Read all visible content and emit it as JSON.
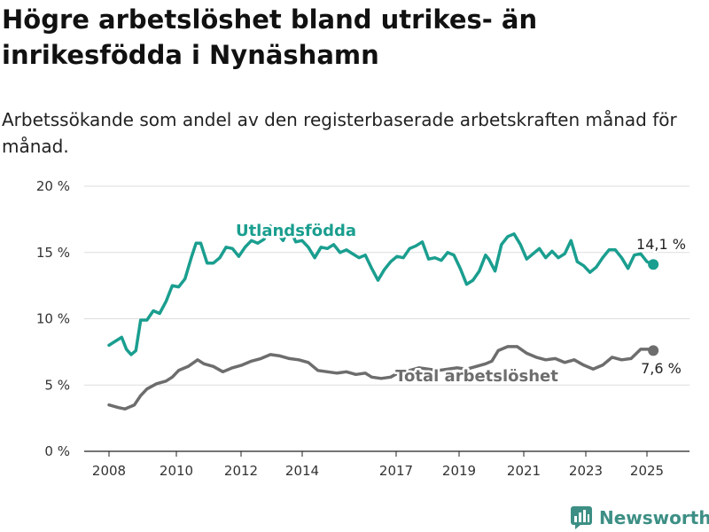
{
  "title": "Högre arbetslöshet bland utrikes- än inrikesfödda i Nynäshamn",
  "subtitle": "Arbetssökande som andel av den registerbaserade arbetskraften månad för månad.",
  "brand": {
    "name": "Newsworthy",
    "color": "#3d8f85"
  },
  "chart_data": {
    "type": "line",
    "title": "Högre arbetslöshet bland utrikes- än inrikesfödda i Nynäshamn",
    "subtitle": "Arbetssökande som andel av den registerbaserade arbetskraften månad för månad.",
    "xlabel": "",
    "ylabel": "",
    "x_ticks": [
      "2008",
      "2010",
      "2012",
      "2014",
      "2017",
      "2019",
      "2021",
      "2023",
      "2025"
    ],
    "y_ticks": [
      "0 %",
      "5 %",
      "10 %",
      "15 %",
      "20 %"
    ],
    "ylim": [
      0,
      20
    ],
    "xlim": [
      2007.7,
      2026.3
    ],
    "grid": "horizontal",
    "legend": "inline labels",
    "series": [
      {
        "name": "Utlandsfödda",
        "color": "#1a9e8f",
        "end_label": "14,1 %",
        "points": [
          [
            2008.0,
            8.0
          ],
          [
            2008.2,
            8.3
          ],
          [
            2008.4,
            8.6
          ],
          [
            2008.55,
            7.7
          ],
          [
            2008.7,
            7.3
          ],
          [
            2008.85,
            7.6
          ],
          [
            2009.0,
            9.9
          ],
          [
            2009.2,
            9.9
          ],
          [
            2009.4,
            10.6
          ],
          [
            2009.6,
            10.4
          ],
          [
            2009.8,
            11.3
          ],
          [
            2010.0,
            12.5
          ],
          [
            2010.2,
            12.4
          ],
          [
            2010.4,
            13.0
          ],
          [
            2010.6,
            14.6
          ],
          [
            2010.75,
            15.7
          ],
          [
            2010.9,
            15.7
          ],
          [
            2011.1,
            14.2
          ],
          [
            2011.3,
            14.2
          ],
          [
            2011.5,
            14.6
          ],
          [
            2011.7,
            15.4
          ],
          [
            2011.9,
            15.3
          ],
          [
            2012.1,
            14.7
          ],
          [
            2012.3,
            15.4
          ],
          [
            2012.5,
            15.9
          ],
          [
            2012.7,
            15.7
          ],
          [
            2012.9,
            16.0
          ],
          [
            2013.1,
            17.0
          ],
          [
            2013.3,
            16.5
          ],
          [
            2013.5,
            15.9
          ],
          [
            2013.7,
            16.9
          ],
          [
            2013.9,
            15.8
          ],
          [
            2014.1,
            15.9
          ],
          [
            2014.3,
            15.4
          ],
          [
            2014.5,
            14.6
          ],
          [
            2014.7,
            15.4
          ],
          [
            2014.9,
            15.3
          ],
          [
            2015.1,
            15.6
          ],
          [
            2015.3,
            15.0
          ],
          [
            2015.5,
            15.2
          ],
          [
            2015.7,
            14.9
          ],
          [
            2015.9,
            14.6
          ],
          [
            2016.1,
            14.8
          ],
          [
            2016.3,
            13.8
          ],
          [
            2016.5,
            12.9
          ],
          [
            2016.7,
            13.7
          ],
          [
            2016.9,
            14.3
          ],
          [
            2017.1,
            14.7
          ],
          [
            2017.3,
            14.6
          ],
          [
            2017.5,
            15.3
          ],
          [
            2017.7,
            15.5
          ],
          [
            2017.9,
            15.8
          ],
          [
            2018.1,
            14.5
          ],
          [
            2018.3,
            14.6
          ],
          [
            2018.5,
            14.4
          ],
          [
            2018.7,
            15.0
          ],
          [
            2018.9,
            14.8
          ],
          [
            2019.1,
            13.8
          ],
          [
            2019.3,
            12.6
          ],
          [
            2019.5,
            12.9
          ],
          [
            2019.7,
            13.6
          ],
          [
            2019.9,
            14.8
          ],
          [
            2020.0,
            14.5
          ],
          [
            2020.2,
            13.6
          ],
          [
            2020.4,
            15.6
          ],
          [
            2020.6,
            16.2
          ],
          [
            2020.8,
            16.4
          ],
          [
            2021.0,
            15.6
          ],
          [
            2021.2,
            14.5
          ],
          [
            2021.4,
            14.9
          ],
          [
            2021.6,
            15.3
          ],
          [
            2021.8,
            14.6
          ],
          [
            2022.0,
            15.1
          ],
          [
            2022.2,
            14.6
          ],
          [
            2022.4,
            14.9
          ],
          [
            2022.6,
            15.9
          ],
          [
            2022.8,
            14.3
          ],
          [
            2023.0,
            14.0
          ],
          [
            2023.2,
            13.5
          ],
          [
            2023.4,
            13.9
          ],
          [
            2023.6,
            14.6
          ],
          [
            2023.8,
            15.2
          ],
          [
            2024.0,
            15.2
          ],
          [
            2024.2,
            14.6
          ],
          [
            2024.4,
            13.8
          ],
          [
            2024.6,
            14.8
          ],
          [
            2024.8,
            14.9
          ],
          [
            2025.0,
            14.3
          ],
          [
            2025.2,
            14.1
          ]
        ]
      },
      {
        "name": "Total arbetslöshet",
        "color": "#6d6d6d",
        "end_label": "7,6 %",
        "points": [
          [
            2008.0,
            3.5
          ],
          [
            2008.3,
            3.3
          ],
          [
            2008.5,
            3.2
          ],
          [
            2008.8,
            3.5
          ],
          [
            2009.0,
            4.2
          ],
          [
            2009.2,
            4.7
          ],
          [
            2009.5,
            5.1
          ],
          [
            2009.8,
            5.3
          ],
          [
            2010.0,
            5.6
          ],
          [
            2010.2,
            6.1
          ],
          [
            2010.5,
            6.4
          ],
          [
            2010.8,
            6.9
          ],
          [
            2011.0,
            6.6
          ],
          [
            2011.3,
            6.4
          ],
          [
            2011.6,
            6.0
          ],
          [
            2011.9,
            6.3
          ],
          [
            2012.2,
            6.5
          ],
          [
            2012.5,
            6.8
          ],
          [
            2012.8,
            7.0
          ],
          [
            2013.1,
            7.3
          ],
          [
            2013.4,
            7.2
          ],
          [
            2013.7,
            7.0
          ],
          [
            2014.0,
            6.9
          ],
          [
            2014.3,
            6.7
          ],
          [
            2014.6,
            6.1
          ],
          [
            2014.9,
            6.0
          ],
          [
            2015.2,
            5.9
          ],
          [
            2015.5,
            6.0
          ],
          [
            2015.8,
            5.8
          ],
          [
            2016.1,
            5.9
          ],
          [
            2016.3,
            5.6
          ],
          [
            2016.6,
            5.5
          ],
          [
            2016.9,
            5.6
          ],
          [
            2017.2,
            6.0
          ],
          [
            2017.5,
            6.1
          ],
          [
            2017.8,
            6.3
          ],
          [
            2018.1,
            6.2
          ],
          [
            2018.4,
            6.1
          ],
          [
            2018.7,
            6.2
          ],
          [
            2019.0,
            6.3
          ],
          [
            2019.3,
            6.2
          ],
          [
            2019.6,
            6.4
          ],
          [
            2019.9,
            6.6
          ],
          [
            2020.1,
            6.8
          ],
          [
            2020.3,
            7.6
          ],
          [
            2020.6,
            7.9
          ],
          [
            2020.9,
            7.9
          ],
          [
            2021.2,
            7.4
          ],
          [
            2021.5,
            7.1
          ],
          [
            2021.8,
            6.9
          ],
          [
            2022.1,
            7.0
          ],
          [
            2022.4,
            6.7
          ],
          [
            2022.7,
            6.9
          ],
          [
            2023.0,
            6.5
          ],
          [
            2023.3,
            6.2
          ],
          [
            2023.6,
            6.5
          ],
          [
            2023.9,
            7.1
          ],
          [
            2024.2,
            6.9
          ],
          [
            2024.5,
            7.0
          ],
          [
            2024.8,
            7.7
          ],
          [
            2025.1,
            7.7
          ],
          [
            2025.2,
            7.6
          ]
        ]
      }
    ]
  }
}
